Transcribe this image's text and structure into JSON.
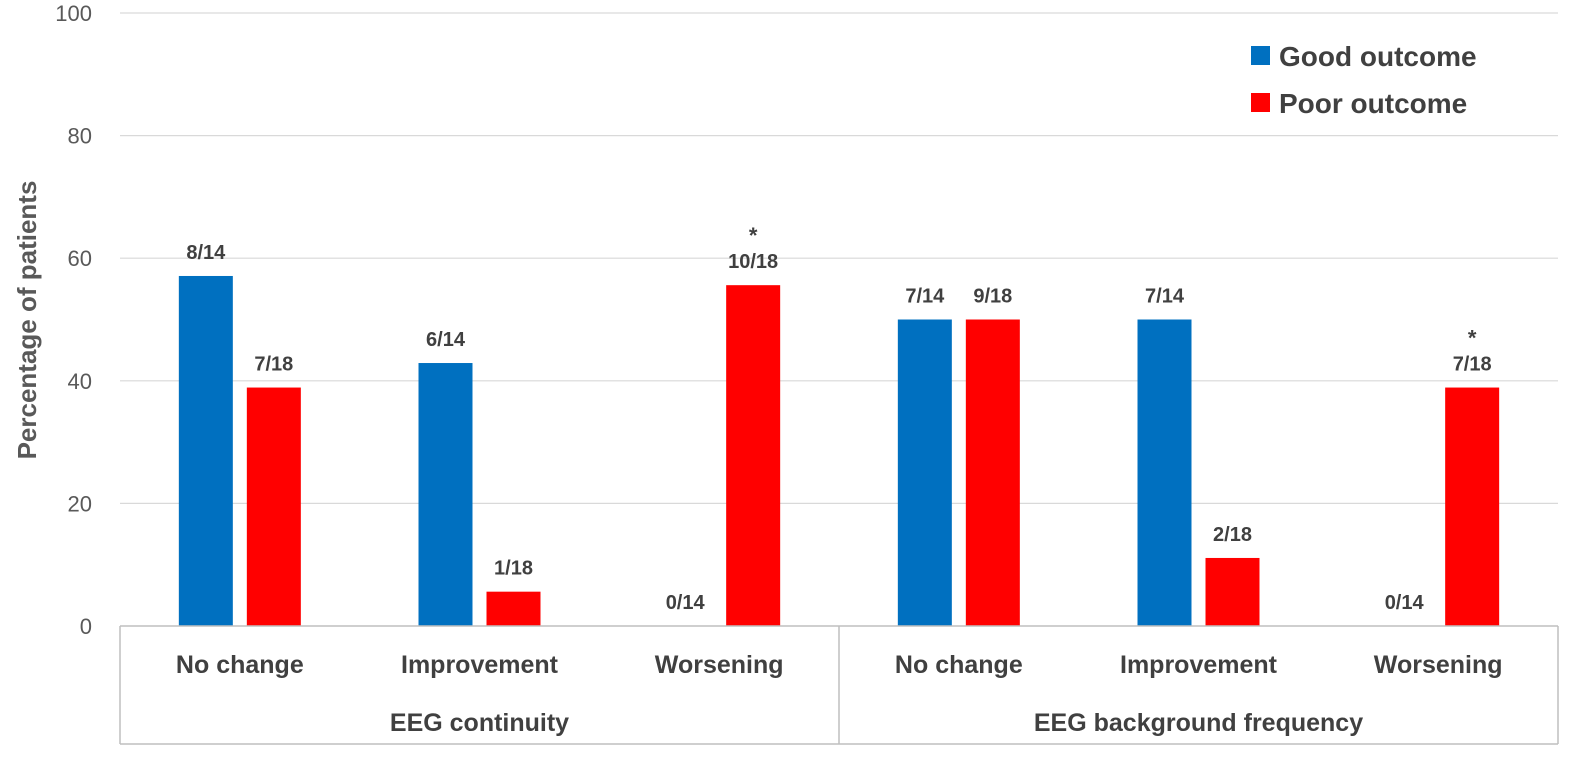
{
  "chart_data": {
    "type": "bar",
    "title": "",
    "ylabel": "Percentage of patients",
    "ylim": [
      0,
      100
    ],
    "yticks": [
      0,
      20,
      40,
      60,
      80,
      100
    ],
    "grid": true,
    "legend_position": "top-right",
    "groups": [
      {
        "label": "EEG continuity",
        "categories": [
          "No change",
          "Improvement",
          "Worsening"
        ]
      },
      {
        "label": "EEG background frequency",
        "categories": [
          "No change",
          "Improvement",
          "Worsening"
        ]
      }
    ],
    "categories": [
      "No change",
      "Improvement",
      "Worsening",
      "No change",
      "Improvement",
      "Worsening"
    ],
    "series": [
      {
        "name": "Good outcome",
        "color": "#0070C0",
        "values": [
          57.1,
          42.9,
          0,
          50,
          50,
          0
        ],
        "labels": [
          "8/14",
          "6/14",
          "0/14",
          "7/14",
          "7/14",
          "0/14"
        ]
      },
      {
        "name": "Poor outcome",
        "color": "#FF0000",
        "values": [
          38.9,
          5.6,
          55.6,
          50,
          11.1,
          38.9
        ],
        "labels": [
          "7/18",
          "1/18",
          "10/18",
          "9/18",
          "2/18",
          "7/18"
        ],
        "significance": [
          "",
          "",
          "*",
          "",
          "",
          "*"
        ]
      }
    ]
  }
}
